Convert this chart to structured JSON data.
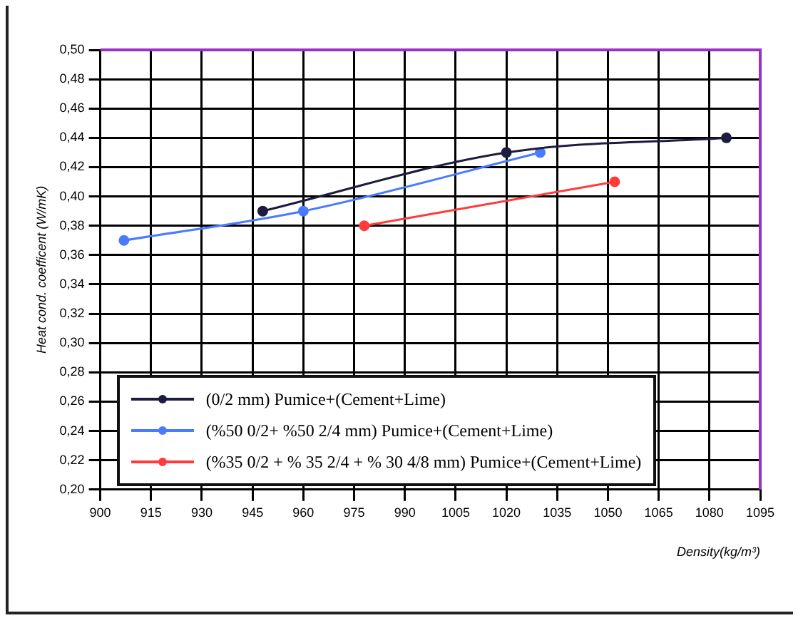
{
  "chart_data": {
    "type": "line",
    "xlabel": "Density(kg/m³)",
    "ylabel": "Heat cond. coefficent (W/mK)",
    "xlim": [
      900,
      1095
    ],
    "xticks": [
      900,
      915,
      930,
      945,
      960,
      975,
      990,
      1005,
      1020,
      1035,
      1050,
      1065,
      1080,
      1095
    ],
    "ylim": [
      0.2,
      0.5
    ],
    "yticks": [
      {
        "value": 0.2,
        "label": "0,20"
      },
      {
        "value": 0.22,
        "label": "0,22"
      },
      {
        "value": 0.24,
        "label": "0,24"
      },
      {
        "value": 0.26,
        "label": "0,26"
      },
      {
        "value": 0.28,
        "label": "0,28"
      },
      {
        "value": 0.3,
        "label": "0,30"
      },
      {
        "value": 0.32,
        "label": "0,32"
      },
      {
        "value": 0.34,
        "label": "0,34"
      },
      {
        "value": 0.36,
        "label": "0,36"
      },
      {
        "value": 0.38,
        "label": "0,38"
      },
      {
        "value": 0.4,
        "label": "0,40"
      },
      {
        "value": 0.42,
        "label": "0,42"
      },
      {
        "value": 0.44,
        "label": "0,44"
      },
      {
        "value": 0.46,
        "label": "0,46"
      },
      {
        "value": 0.48,
        "label": "0,48"
      },
      {
        "value": 0.5,
        "label": "0,50"
      }
    ],
    "grid": true,
    "legend": "bottom",
    "marker": "circle",
    "line_style": "solid",
    "series": [
      {
        "name": "(0/2 mm) Pumice+(Cement+Lime)",
        "color": "#1c1c40",
        "x": [
          948,
          1020,
          1085
        ],
        "values": [
          0.39,
          0.43,
          0.44
        ]
      },
      {
        "name": "(%50 0/2+ %50 2/4 mm) Pumice+(Cement+Lime)",
        "color": "#4a7bff",
        "x": [
          907,
          960,
          1030
        ],
        "values": [
          0.37,
          0.39,
          0.43
        ]
      },
      {
        "name": "(%35 0/2 + % 35 2/4 + % 30 4/8 mm) Pumice+(Cement+Lime)",
        "color": "#ff3b3b",
        "x": [
          978,
          1052
        ],
        "values": [
          0.38,
          0.41
        ]
      }
    ]
  }
}
